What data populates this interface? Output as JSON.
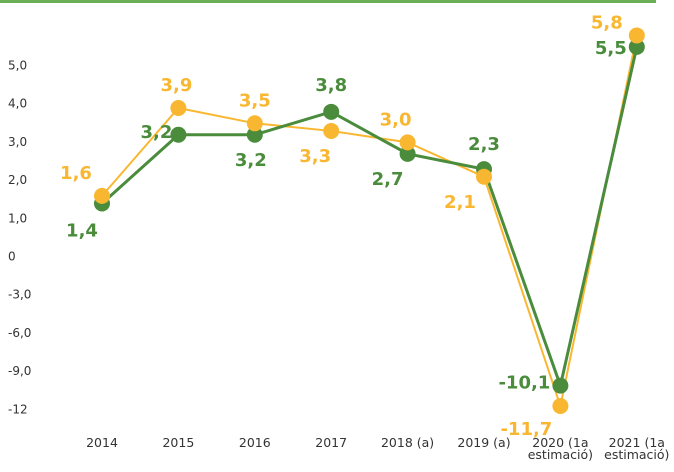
{
  "chart_data": {
    "type": "line",
    "categories": [
      "2014",
      "2015",
      "2016",
      "2017",
      "2018 (a)",
      "2019 (a)",
      "2020 (1a estimació)",
      "2021 (1a estimació)"
    ],
    "series": [
      {
        "color": "#4a8c3c",
        "values": [
          1.4,
          3.2,
          3.2,
          3.8,
          2.7,
          2.3,
          -10.1,
          5.5
        ],
        "value_labels": [
          "1,4",
          "3,2",
          "3,2",
          "3,8",
          "2,7",
          "2,3",
          "-10,1",
          "5,5"
        ]
      },
      {
        "color": "#f9b731",
        "values": [
          1.6,
          3.9,
          3.5,
          3.3,
          3.0,
          2.1,
          -11.7,
          5.8
        ],
        "value_labels": [
          "1,6",
          "3,9",
          "3,5",
          "3,3",
          "3,0",
          "2,1",
          "-11,7",
          "5,8"
        ]
      }
    ],
    "ylim": [
      -12,
      6
    ],
    "yticks": [
      {
        "value": 5,
        "label": "5,0"
      },
      {
        "value": 4,
        "label": "4,0"
      },
      {
        "value": 3,
        "label": "3,0"
      },
      {
        "value": 2,
        "label": "2,0"
      },
      {
        "value": 1,
        "label": "1,0"
      },
      0,
      {
        "value": -3,
        "label": "-3,0"
      },
      {
        "value": -6,
        "label": "-6,0"
      },
      {
        "value": -9,
        "label": "-9,0"
      },
      -12
    ]
  }
}
